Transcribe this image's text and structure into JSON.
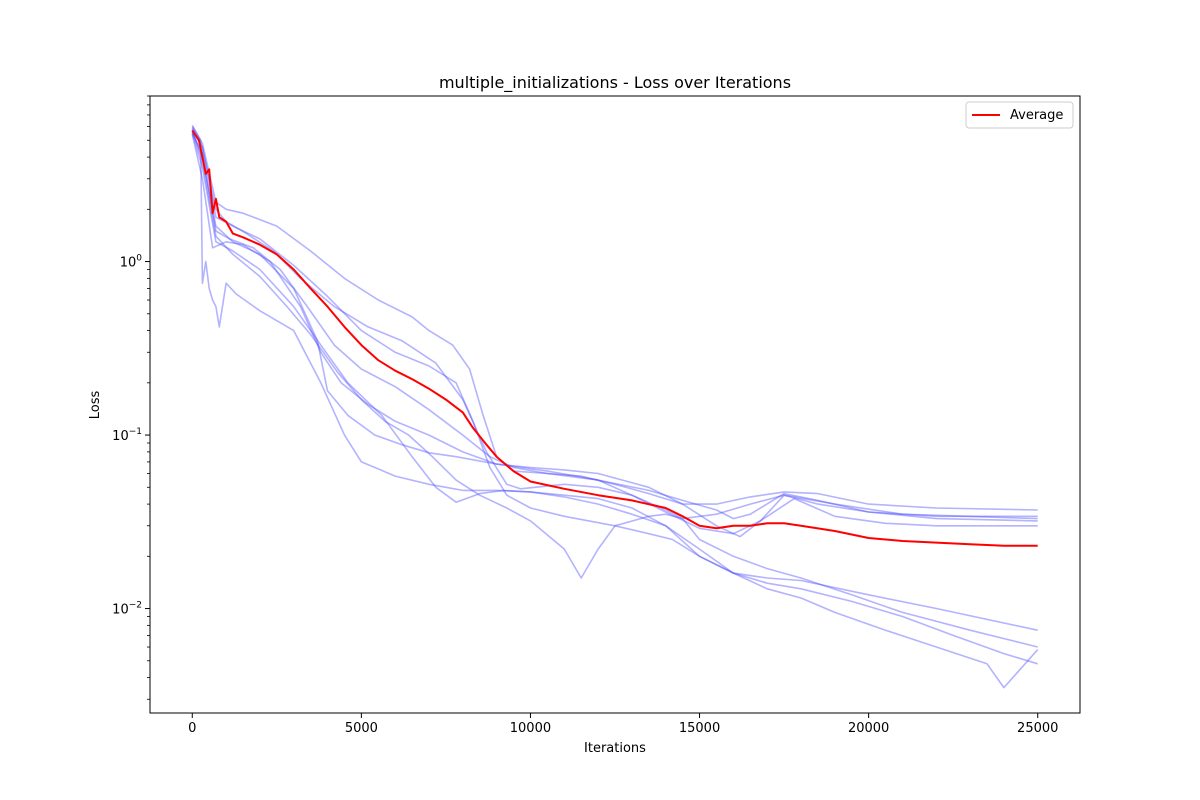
{
  "chart_data": {
    "type": "line",
    "title": "multiple_initializations - Loss over Iterations",
    "xlabel": "Iterations",
    "ylabel": "Loss",
    "xlim": [
      -1250,
      26250
    ],
    "ylim": [
      0.0025,
      9.0
    ],
    "yscale": "log",
    "grid": false,
    "legend_position": "top-right",
    "x_ticks": [
      {
        "value": 0,
        "label": "0"
      },
      {
        "value": 5000,
        "label": "5000"
      },
      {
        "value": 10000,
        "label": "10000"
      },
      {
        "value": 15000,
        "label": "15000"
      },
      {
        "value": 20000,
        "label": "20000"
      },
      {
        "value": 25000,
        "label": "25000"
      }
    ],
    "y_ticks": [
      {
        "value": 0.01,
        "label_base": "10",
        "label_exp": "−2"
      },
      {
        "value": 0.1,
        "label_base": "10",
        "label_exp": "−1"
      },
      {
        "value": 1,
        "label_base": "10",
        "label_exp": "0"
      }
    ],
    "colors": {
      "runs": "#4a4aff",
      "average": "#ff0000"
    },
    "series": [
      {
        "name": "Average",
        "color": "#ff0000",
        "x": [
          0,
          200,
          400,
          500,
          600,
          700,
          800,
          1000,
          1200,
          1500,
          2000,
          2500,
          3000,
          3500,
          4000,
          4500,
          5000,
          5500,
          6000,
          6500,
          7000,
          7500,
          8000,
          8300,
          8700,
          9000,
          9500,
          10000,
          11000,
          12000,
          13000,
          14000,
          14500,
          15000,
          15500,
          16000,
          16500,
          17000,
          17500,
          18000,
          19000,
          20000,
          21000,
          22000,
          23000,
          24000,
          25000
        ],
        "y": [
          5.7,
          5.0,
          3.2,
          3.4,
          1.9,
          2.3,
          1.8,
          1.7,
          1.45,
          1.38,
          1.25,
          1.1,
          0.9,
          0.7,
          0.55,
          0.42,
          0.33,
          0.27,
          0.235,
          0.21,
          0.185,
          0.16,
          0.135,
          0.11,
          0.088,
          0.075,
          0.062,
          0.054,
          0.049,
          0.045,
          0.042,
          0.038,
          0.034,
          0.03,
          0.029,
          0.03,
          0.03,
          0.031,
          0.031,
          0.03,
          0.028,
          0.0255,
          0.0245,
          0.024,
          0.0235,
          0.023,
          0.023
        ]
      },
      {
        "color": "#4a4aff",
        "x": [
          0,
          300,
          700,
          1000,
          1500,
          2500,
          3500,
          4500,
          5500,
          6500,
          7000,
          7700,
          8200,
          8600,
          9000,
          9500,
          10500,
          11500,
          12500,
          13500,
          14500,
          15500,
          16500,
          17500,
          18500,
          20000,
          22000,
          25000
        ],
        "y": [
          6.0,
          4.8,
          2.2,
          2.0,
          1.9,
          1.6,
          1.15,
          0.8,
          0.6,
          0.48,
          0.4,
          0.33,
          0.24,
          0.13,
          0.075,
          0.062,
          0.06,
          0.058,
          0.052,
          0.046,
          0.04,
          0.04,
          0.044,
          0.047,
          0.046,
          0.04,
          0.038,
          0.037
        ]
      },
      {
        "color": "#4a4aff",
        "x": [
          0,
          300,
          700,
          1000,
          1600,
          2400,
          3200,
          4200,
          5200,
          6200,
          7200,
          8000,
          8700,
          9300,
          9700,
          11000,
          12000,
          13000,
          14000,
          14500,
          15500,
          16500,
          17500,
          18500,
          20000,
          22000,
          25000
        ],
        "y": [
          5.8,
          4.5,
          2.0,
          1.7,
          1.45,
          1.15,
          0.8,
          0.55,
          0.42,
          0.35,
          0.26,
          0.16,
          0.08,
          0.052,
          0.049,
          0.052,
          0.05,
          0.045,
          0.037,
          0.033,
          0.035,
          0.04,
          0.045,
          0.04,
          0.036,
          0.034,
          0.034
        ]
      },
      {
        "color": "#4a4aff",
        "x": [
          0,
          300,
          700,
          1100,
          1800,
          2600,
          3400,
          4200,
          5000,
          6000,
          7000,
          8000,
          8800,
          9500,
          10500,
          12000,
          13500,
          14500,
          15500,
          16000,
          16500,
          17500,
          18500,
          20000,
          22000,
          25000
        ],
        "y": [
          5.5,
          4.2,
          1.5,
          1.35,
          1.2,
          0.9,
          0.55,
          0.33,
          0.24,
          0.19,
          0.14,
          0.1,
          0.075,
          0.065,
          0.06,
          0.055,
          0.048,
          0.042,
          0.037,
          0.033,
          0.035,
          0.046,
          0.042,
          0.036,
          0.033,
          0.032
        ]
      },
      {
        "color": "#4a4aff",
        "x": [
          0,
          300,
          600,
          1000,
          1500,
          2300,
          3200,
          3800,
          4400,
          5200,
          6000,
          7000,
          8000,
          9000,
          10500,
          12000,
          13000,
          14000,
          15000,
          16000,
          16800,
          17500,
          19000,
          21000,
          25000
        ],
        "y": [
          5.4,
          3.0,
          1.2,
          1.3,
          1.25,
          1.0,
          0.55,
          0.3,
          0.2,
          0.15,
          0.12,
          0.1,
          0.08,
          0.068,
          0.062,
          0.055,
          0.045,
          0.036,
          0.029,
          0.027,
          0.032,
          0.045,
          0.04,
          0.035,
          0.033
        ]
      },
      {
        "color": "#4a4aff",
        "x": [
          0,
          300,
          700,
          1200,
          2000,
          3000,
          3700,
          4000,
          4600,
          5400,
          6200,
          7000,
          7800,
          9000,
          10000,
          11000,
          12000,
          13500,
          14500,
          15500,
          16200,
          16800,
          17800,
          19000,
          20500,
          22000,
          25000
        ],
        "y": [
          5.6,
          4.0,
          1.6,
          1.3,
          1.1,
          0.7,
          0.35,
          0.18,
          0.13,
          0.1,
          0.088,
          0.079,
          0.075,
          0.068,
          0.065,
          0.063,
          0.06,
          0.05,
          0.04,
          0.03,
          0.026,
          0.032,
          0.043,
          0.034,
          0.031,
          0.03,
          0.03
        ]
      },
      {
        "color": "#4a4aff",
        "x": [
          0,
          250,
          300,
          400,
          500,
          600,
          700,
          800,
          1000,
          1300,
          2000,
          3000,
          3800,
          4500,
          5000,
          6000,
          7000,
          7500,
          8000,
          9000,
          10000,
          11000,
          12000,
          13000,
          14000,
          15000,
          16000,
          17000,
          18000,
          20000,
          22000,
          25000
        ],
        "y": [
          6.1,
          5.0,
          0.75,
          1.0,
          0.7,
          0.6,
          0.55,
          0.42,
          0.75,
          0.65,
          0.52,
          0.4,
          0.2,
          0.1,
          0.07,
          0.058,
          0.052,
          0.05,
          0.048,
          0.048,
          0.047,
          0.044,
          0.04,
          0.035,
          0.03,
          0.02,
          0.016,
          0.015,
          0.0145,
          0.012,
          0.01,
          0.0075
        ]
      },
      {
        "color": "#4a4aff",
        "x": [
          0,
          300,
          700,
          1200,
          2000,
          2800,
          3500,
          4300,
          5000,
          5700,
          6400,
          7100,
          7800,
          8500,
          9300,
          10000,
          11000,
          11500,
          12000,
          12500,
          13500,
          14000,
          14500,
          15000,
          16000,
          17000,
          18000,
          19500,
          21000,
          23000,
          25000
        ],
        "y": [
          5.7,
          3.8,
          1.4,
          1.1,
          0.82,
          0.55,
          0.38,
          0.23,
          0.16,
          0.12,
          0.1,
          0.075,
          0.055,
          0.045,
          0.038,
          0.032,
          0.022,
          0.015,
          0.022,
          0.03,
          0.034,
          0.035,
          0.033,
          0.025,
          0.02,
          0.017,
          0.015,
          0.012,
          0.0095,
          0.0075,
          0.006
        ]
      },
      {
        "color": "#4a4aff",
        "x": [
          0,
          300,
          700,
          1200,
          2000,
          3000,
          3800,
          4600,
          5600,
          6500,
          7200,
          7800,
          8500,
          9200,
          10000,
          11000,
          12000,
          13000,
          14000,
          15000,
          16000,
          17000,
          18000,
          19500,
          21000,
          22500,
          24000,
          25000
        ],
        "y": [
          5.5,
          3.5,
          1.3,
          1.15,
          0.9,
          0.55,
          0.33,
          0.2,
          0.13,
          0.075,
          0.05,
          0.041,
          0.046,
          0.048,
          0.047,
          0.045,
          0.043,
          0.038,
          0.03,
          0.022,
          0.016,
          0.014,
          0.013,
          0.011,
          0.009,
          0.007,
          0.0055,
          0.0048
        ]
      },
      {
        "color": "#4a4aff",
        "x": [
          0,
          300,
          700,
          1200,
          2000,
          3000,
          4000,
          5000,
          6000,
          7000,
          7800,
          8300,
          8800,
          9300,
          10000,
          11000,
          12500,
          13500,
          14200,
          15000,
          16000,
          17000,
          18000,
          19000,
          20500,
          22000,
          23500,
          24000,
          25000
        ],
        "y": [
          5.9,
          4.6,
          1.8,
          1.6,
          1.35,
          0.95,
          0.63,
          0.4,
          0.3,
          0.25,
          0.2,
          0.12,
          0.065,
          0.045,
          0.038,
          0.034,
          0.03,
          0.027,
          0.025,
          0.02,
          0.016,
          0.013,
          0.0115,
          0.0095,
          0.0075,
          0.006,
          0.0048,
          0.0035,
          0.0058
        ]
      }
    ],
    "legend": [
      {
        "label": "Average",
        "color": "#ff0000"
      }
    ]
  }
}
